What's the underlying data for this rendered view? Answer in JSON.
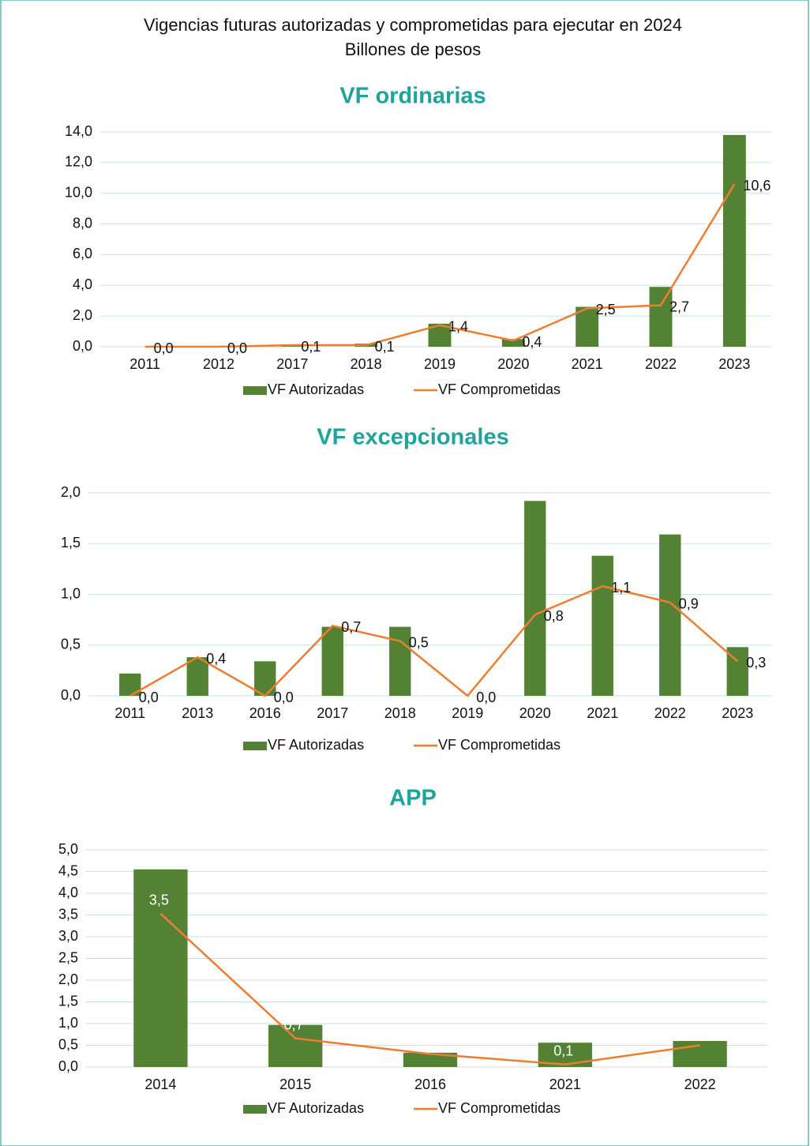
{
  "title": "Vigencias futuras autorizadas y comprometidas para ejecutar en 2024",
  "subtitle": "Billones de pesos",
  "chart_data": [
    {
      "type": "combo",
      "title": "VF ordinarias",
      "categories": [
        "2011",
        "2012",
        "2017",
        "2018",
        "2019",
        "2020",
        "2021",
        "2022",
        "2023"
      ],
      "series": [
        {
          "name": "VF Autorizadas",
          "type": "bar",
          "color": "#548235",
          "values": [
            0,
            0,
            0.05,
            0.2,
            1.5,
            0.5,
            2.6,
            3.9,
            13.8
          ]
        },
        {
          "name": "VF Comprometidas",
          "type": "line",
          "color": "#ed7d31",
          "values": [
            0.0,
            0.0,
            0.1,
            0.1,
            1.4,
            0.4,
            2.5,
            2.7,
            10.6
          ],
          "value_labels": [
            "0,0",
            "0,0",
            "0,1",
            "0,1",
            "1,4",
            "0,4",
            "2,5",
            "2,7",
            "10,6"
          ]
        }
      ],
      "ylim": [
        0,
        14
      ],
      "yticks": [
        {
          "value": 0,
          "label": "0,0"
        },
        {
          "value": 2,
          "label": "2,0"
        },
        {
          "value": 4,
          "label": "4,0"
        },
        {
          "value": 6,
          "label": "6,0"
        },
        {
          "value": 8,
          "label": "8,0"
        },
        {
          "value": 10,
          "label": "10,0"
        },
        {
          "value": 12,
          "label": "12,0"
        },
        {
          "value": 14,
          "label": "14,0"
        }
      ],
      "grid": true,
      "legend": "bottom",
      "title_color": "#1fa39a",
      "grid_color": "#c8e3e3"
    },
    {
      "type": "combo",
      "title": "VF excepcionales",
      "categories": [
        "2011",
        "2013",
        "2016",
        "2017",
        "2018",
        "2019",
        "2020",
        "2021",
        "2022",
        "2023"
      ],
      "series": [
        {
          "name": "VF Autorizadas",
          "type": "bar",
          "color": "#548235",
          "values": [
            0.22,
            0.38,
            0.34,
            0.68,
            0.68,
            0,
            1.92,
            1.38,
            1.59,
            0.48
          ]
        },
        {
          "name": "VF Comprometidas",
          "type": "line",
          "color": "#ed7d31",
          "values": [
            0.0,
            0.38,
            0.0,
            0.69,
            0.54,
            0.0,
            0.8,
            1.08,
            0.92,
            0.34
          ],
          "value_labels": [
            "0,0",
            "0,4",
            "0,0",
            "0,7",
            "0,5",
            "0,0",
            "0,8",
            "1,1",
            "0,9",
            "0,3"
          ]
        }
      ],
      "ylim": [
        0,
        2
      ],
      "yticks": [
        {
          "value": 0,
          "label": "0,0"
        },
        {
          "value": 0.5,
          "label": "0,5"
        },
        {
          "value": 1,
          "label": "1,0"
        },
        {
          "value": 1.5,
          "label": "1,5"
        },
        {
          "value": 2,
          "label": "2,0"
        }
      ],
      "grid": true,
      "legend": "bottom",
      "title_color": "#1fa39a",
      "grid_color": "#c8e3e3"
    },
    {
      "type": "combo",
      "title": "APP",
      "categories": [
        "2014",
        "2015",
        "2016",
        "2021",
        "2022"
      ],
      "series": [
        {
          "name": "VF Autorizadas",
          "type": "bar",
          "color": "#548235",
          "values": [
            4.55,
            0.97,
            0.33,
            0.56,
            0.6
          ]
        },
        {
          "name": "VF Comprometidas",
          "type": "line",
          "color": "#ed7d31",
          "values": [
            3.53,
            0.66,
            0.3,
            0.06,
            0.5
          ],
          "value_labels": [
            "3,5",
            "0,7",
            "0,3",
            "0,1",
            "0,5"
          ]
        }
      ],
      "ylim": [
        0,
        5
      ],
      "yticks": [
        {
          "value": 0,
          "label": "0,0"
        },
        {
          "value": 0.5,
          "label": "0,5"
        },
        {
          "value": 1,
          "label": "1,0"
        },
        {
          "value": 1.5,
          "label": "1,5"
        },
        {
          "value": 2,
          "label": "2,0"
        },
        {
          "value": 2.5,
          "label": "2,5"
        },
        {
          "value": 3,
          "label": "3,0"
        },
        {
          "value": 3.5,
          "label": "3,5"
        },
        {
          "value": 4,
          "label": "4,0"
        },
        {
          "value": 4.5,
          "label": "4,5"
        },
        {
          "value": 5,
          "label": "5,0"
        }
      ],
      "grid": true,
      "legend": "bottom",
      "title_color": "#1fa39a",
      "grid_color": "#c8e3e3"
    }
  ]
}
